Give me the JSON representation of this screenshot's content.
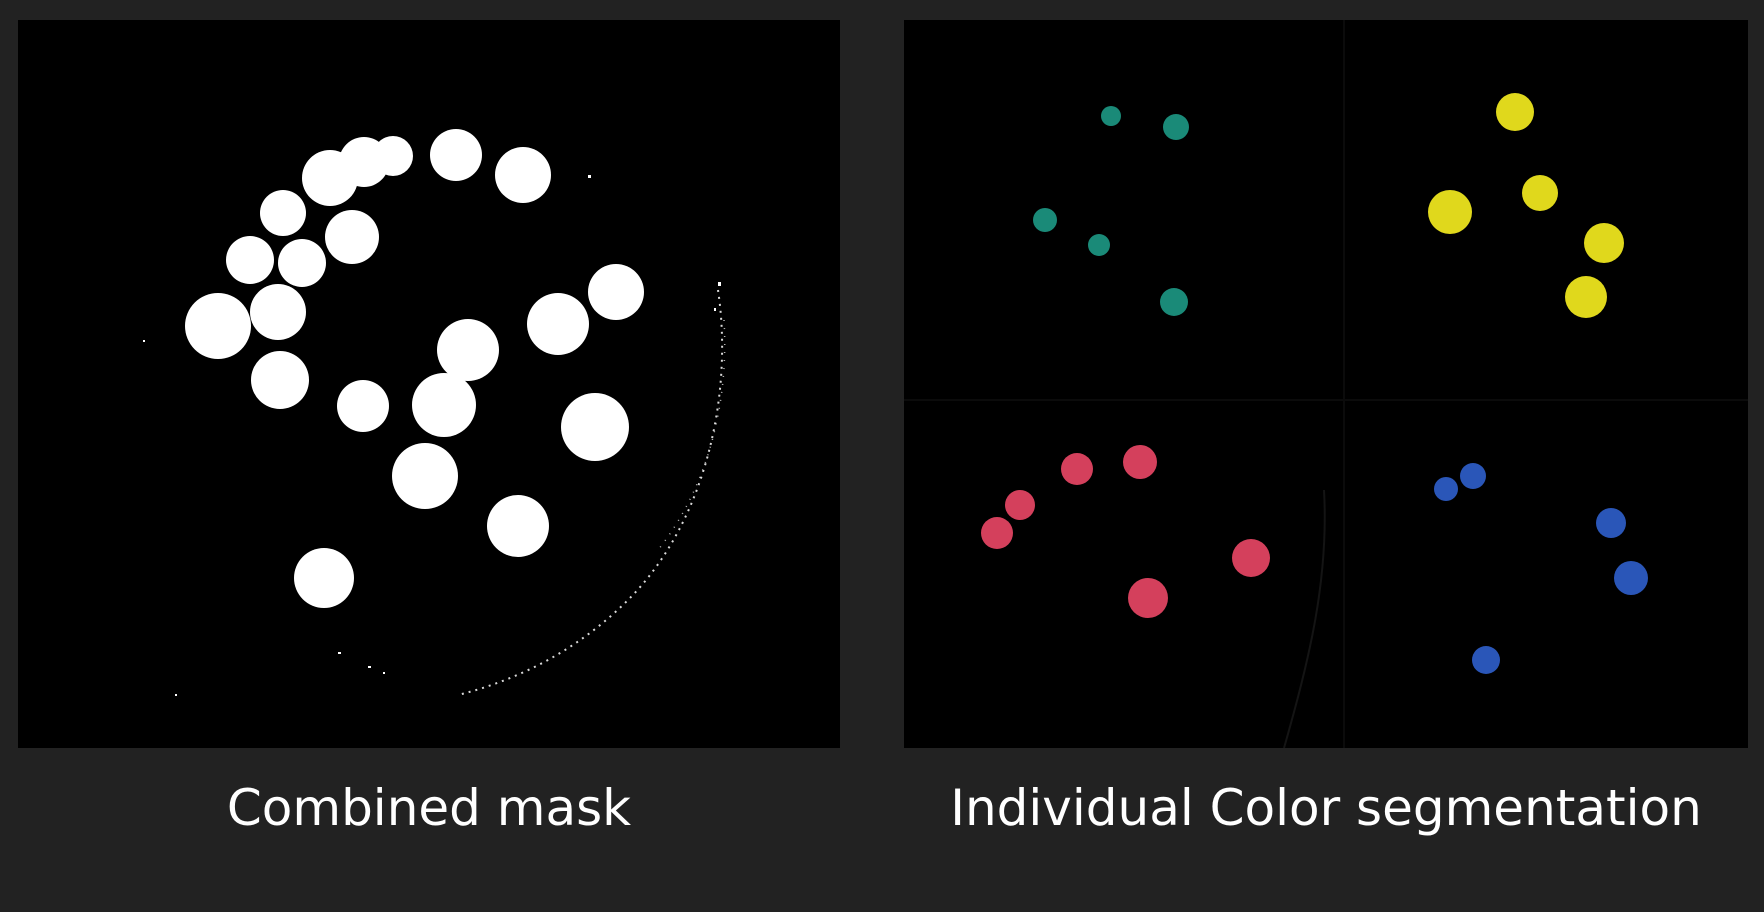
{
  "panels": {
    "left": {
      "caption": "Combined mask"
    },
    "right": {
      "caption": "Individual Color segmentation"
    }
  },
  "colors": {
    "background": "#222222",
    "panel": "#000000",
    "mask": "#ffffff",
    "teal": "#1a8a78",
    "yellow": "#e0d81c",
    "red": "#d4405c",
    "blue": "#2a56b8"
  }
}
